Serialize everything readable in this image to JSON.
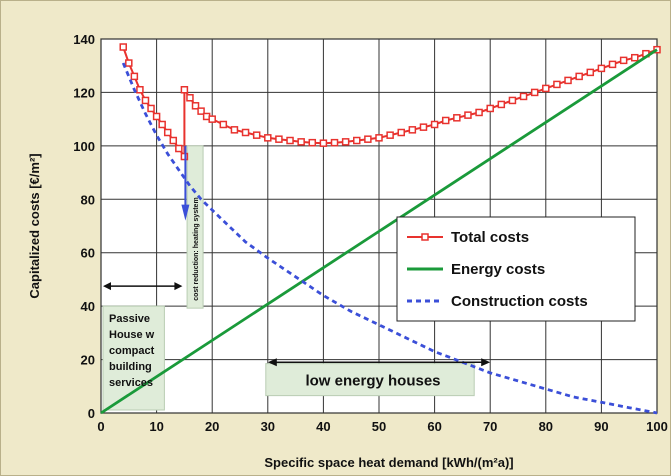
{
  "chart_data": {
    "type": "line",
    "xlabel": "Specific space  heat demand [kWh/(m²a)]",
    "ylabel": "Capitalized costs [€/m²]",
    "xlim": [
      0,
      100
    ],
    "ylim": [
      0,
      140
    ],
    "xticks": [
      0,
      10,
      20,
      30,
      40,
      50,
      60,
      70,
      80,
      90,
      100
    ],
    "yticks": [
      0,
      20,
      40,
      60,
      80,
      100,
      120,
      140
    ],
    "grid": true,
    "legend_position": "center-right",
    "series": [
      {
        "name": "Total costs",
        "color": "#e8322e",
        "style": "line-with-square-markers",
        "x": [
          4,
          5,
          6,
          7,
          8,
          9,
          10,
          11,
          12,
          13,
          14,
          15,
          15,
          16,
          17,
          18,
          19,
          20,
          22,
          24,
          26,
          28,
          30,
          32,
          34,
          36,
          38,
          40,
          42,
          44,
          46,
          48,
          50,
          52,
          54,
          56,
          58,
          60,
          62,
          64,
          66,
          68,
          70,
          72,
          74,
          76,
          78,
          80,
          82,
          84,
          86,
          88,
          90,
          92,
          94,
          96,
          98,
          100
        ],
        "y": [
          137,
          131,
          126,
          121,
          117,
          114,
          111,
          108,
          105,
          102,
          99,
          96,
          121,
          118,
          115,
          113,
          111,
          110,
          108,
          106,
          105,
          104,
          103,
          102.5,
          102,
          101.5,
          101.2,
          101,
          101.2,
          101.5,
          102,
          102.5,
          103,
          104,
          105,
          106,
          107,
          108,
          109.5,
          110.5,
          111.5,
          112.5,
          114,
          115.5,
          117,
          118.5,
          120,
          121.5,
          123,
          124.5,
          126,
          127.5,
          129,
          130.5,
          132,
          133,
          134.5,
          136
        ]
      },
      {
        "name": "Energy costs",
        "color": "#1a9a3a",
        "style": "solid",
        "x": [
          0,
          100
        ],
        "y": [
          0,
          136
        ]
      },
      {
        "name": "Construction costs",
        "color": "#3b4fd8",
        "style": "dashed",
        "x": [
          4,
          6,
          8,
          10,
          12,
          14,
          16,
          18,
          20,
          22,
          24,
          26,
          28,
          30,
          35,
          40,
          45,
          50,
          55,
          60,
          65,
          70,
          75,
          80,
          85,
          90,
          95,
          100
        ],
        "y": [
          131,
          121,
          112,
          104,
          97,
          91,
          85,
          80,
          76,
          72,
          68,
          64,
          61,
          58,
          51,
          44,
          38,
          33,
          28,
          23,
          19,
          15,
          12,
          9,
          6,
          4,
          2,
          0
        ]
      }
    ],
    "annotations": {
      "passive": {
        "lines": [
          "Passive",
          "House w",
          "compact",
          "building",
          "services"
        ],
        "x_range": [
          0,
          15
        ]
      },
      "low_energy": {
        "label": "low energy houses",
        "x_range": [
          30,
          70
        ]
      },
      "cost_reduction": {
        "label": "cost reduction: heating system",
        "x": 15
      }
    }
  }
}
